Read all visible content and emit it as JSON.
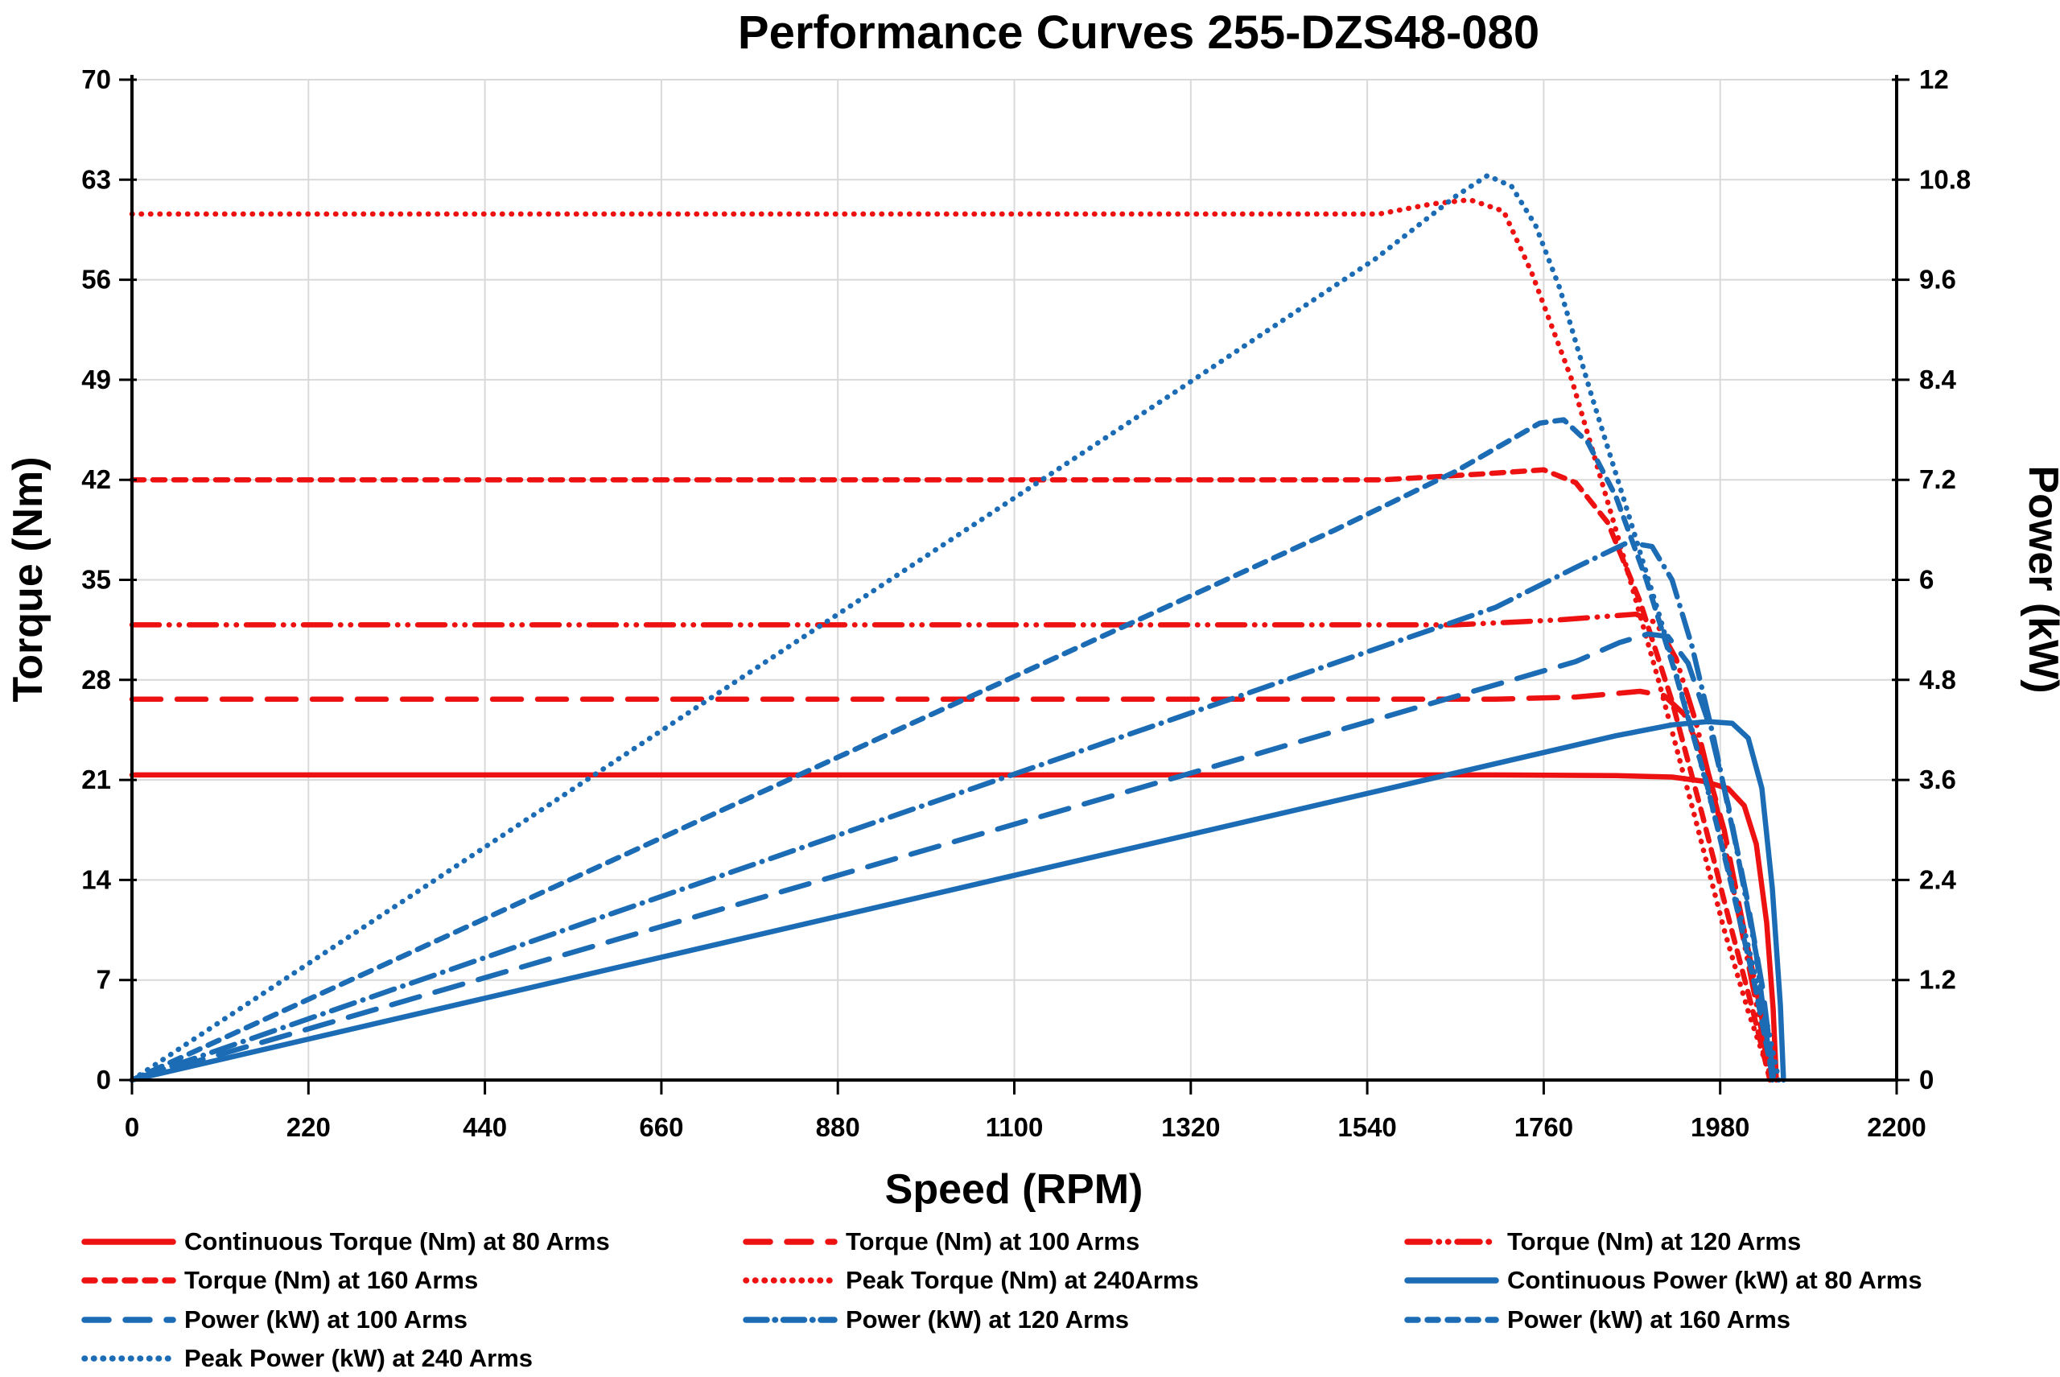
{
  "colors": {
    "red": "#ED1111",
    "blue": "#1B6CB5",
    "grid": "#D9D9D9",
    "axis": "#000000",
    "text": "#000000"
  },
  "chart_data": {
    "type": "line",
    "title": "Performance Curves 255-DZS48-080",
    "xlabel": "Speed (RPM)",
    "ylabel_left": "Torque (Nm)",
    "ylabel_right": "Power (kW)",
    "xlim": [
      0,
      2200
    ],
    "ylim_left": [
      0,
      70
    ],
    "ylim_right": [
      0,
      12
    ],
    "x_ticks": [
      0,
      220,
      440,
      660,
      880,
      1100,
      1320,
      1540,
      1760,
      1980,
      2200
    ],
    "y_ticks_left": [
      0,
      7,
      14,
      21,
      28,
      35,
      42,
      49,
      56,
      63,
      70
    ],
    "y_ticks_right": [
      0,
      1.2,
      2.4,
      3.6,
      4.8,
      6,
      7.2,
      8.4,
      9.6,
      10.8,
      12
    ],
    "grid": true,
    "legend_position": "bottom",
    "series": [
      {
        "id": "t80",
        "name": "Continuous Torque (Nm) at 80 Arms",
        "axis": "left",
        "color": "red",
        "dash": "solid",
        "points": [
          [
            0,
            21.35
          ],
          [
            1700,
            21.35
          ],
          [
            1850,
            21.3
          ],
          [
            1920,
            21.2
          ],
          [
            1960,
            20.9
          ],
          [
            1990,
            20.4
          ],
          [
            2010,
            19.2
          ],
          [
            2025,
            16.5
          ],
          [
            2038,
            11
          ],
          [
            2046,
            5
          ],
          [
            2050,
            0
          ]
        ]
      },
      {
        "id": "t100",
        "name": "Torque (Nm) at 100 Arms",
        "axis": "left",
        "color": "red",
        "dash": "long-dash",
        "points": [
          [
            0,
            26.65
          ],
          [
            1700,
            26.65
          ],
          [
            1800,
            26.8
          ],
          [
            1880,
            27.2
          ],
          [
            1910,
            26.9
          ],
          [
            1935,
            25.6
          ],
          [
            1960,
            22.5
          ],
          [
            1985,
            17.5
          ],
          [
            2008,
            11
          ],
          [
            2030,
            5
          ],
          [
            2044,
            0
          ]
        ]
      },
      {
        "id": "t120",
        "name": "Torque (Nm) at 120 Arms",
        "axis": "left",
        "color": "red",
        "dash": "dash-dot-dot",
        "points": [
          [
            0,
            31.85
          ],
          [
            1650,
            31.85
          ],
          [
            1780,
            32.2
          ],
          [
            1875,
            32.6
          ],
          [
            1900,
            32
          ],
          [
            1925,
            29.5
          ],
          [
            1950,
            25
          ],
          [
            1978,
            18.5
          ],
          [
            2005,
            11
          ],
          [
            2028,
            4.5
          ],
          [
            2043,
            0
          ]
        ]
      },
      {
        "id": "t160",
        "name": "Torque (Nm) at 160 Arms",
        "axis": "left",
        "color": "red",
        "dash": "short-dash",
        "points": [
          [
            0,
            42
          ],
          [
            1560,
            42
          ],
          [
            1680,
            42.4
          ],
          [
            1760,
            42.7
          ],
          [
            1800,
            41.8
          ],
          [
            1840,
            39
          ],
          [
            1880,
            33.5
          ],
          [
            1920,
            26.5
          ],
          [
            1958,
            18.5
          ],
          [
            1992,
            11
          ],
          [
            2020,
            5
          ],
          [
            2042,
            0
          ]
        ]
      },
      {
        "id": "t240",
        "name": "Peak Torque (Nm) at 240Arms",
        "axis": "left",
        "color": "red",
        "dash": "dot",
        "points": [
          [
            0,
            60.6
          ],
          [
            1555,
            60.6
          ],
          [
            1620,
            61.3
          ],
          [
            1668,
            61.6
          ],
          [
            1710,
            60.8
          ],
          [
            1745,
            56.5
          ],
          [
            1795,
            49
          ],
          [
            1850,
            38.5
          ],
          [
            1903,
            28
          ],
          [
            1948,
            18.5
          ],
          [
            1985,
            10.5
          ],
          [
            2015,
            4.8
          ],
          [
            2044,
            0
          ]
        ]
      },
      {
        "id": "p80",
        "name": "Continuous Power (kW) at 80 Arms",
        "axis": "right",
        "color": "blue",
        "dash": "solid",
        "points": [
          [
            0,
            0
          ],
          [
            950,
            2.12
          ],
          [
            1850,
            4.13
          ],
          [
            1920,
            4.26
          ],
          [
            1965,
            4.3
          ],
          [
            1995,
            4.28
          ],
          [
            2015,
            4.1
          ],
          [
            2032,
            3.5
          ],
          [
            2045,
            2.3
          ],
          [
            2055,
            0.9
          ],
          [
            2059,
            0
          ]
        ]
      },
      {
        "id": "p100",
        "name": "Power (kW) at 100 Arms",
        "axis": "right",
        "color": "blue",
        "dash": "long-dash",
        "points": [
          [
            0,
            0
          ],
          [
            950,
            2.65
          ],
          [
            1800,
            5.02
          ],
          [
            1855,
            5.25
          ],
          [
            1890,
            5.35
          ],
          [
            1915,
            5.32
          ],
          [
            1940,
            5.0
          ],
          [
            1965,
            4.3
          ],
          [
            1990,
            3.3
          ],
          [
            2013,
            2.2
          ],
          [
            2033,
            1.1
          ],
          [
            2047,
            0
          ]
        ]
      },
      {
        "id": "p120",
        "name": "Power (kW) at 120 Arms",
        "axis": "right",
        "color": "blue",
        "dash": "dash-dot",
        "points": [
          [
            0,
            0
          ],
          [
            950,
            3.17
          ],
          [
            1700,
            5.67
          ],
          [
            1800,
            6.15
          ],
          [
            1865,
            6.45
          ],
          [
            1895,
            6.4
          ],
          [
            1920,
            6.0
          ],
          [
            1945,
            5.2
          ],
          [
            1972,
            4.1
          ],
          [
            2000,
            2.8
          ],
          [
            2025,
            1.5
          ],
          [
            2045,
            0
          ]
        ]
      },
      {
        "id": "p160",
        "name": "Power (kW) at 160 Arms",
        "axis": "right",
        "color": "blue",
        "dash": "short-dash",
        "points": [
          [
            0,
            0
          ],
          [
            950,
            4.18
          ],
          [
            1500,
            6.6
          ],
          [
            1650,
            7.3
          ],
          [
            1755,
            7.88
          ],
          [
            1785,
            7.92
          ],
          [
            1815,
            7.65
          ],
          [
            1850,
            7.0
          ],
          [
            1888,
            6.0
          ],
          [
            1925,
            4.85
          ],
          [
            1962,
            3.6
          ],
          [
            1995,
            2.3
          ],
          [
            2024,
            1.1
          ],
          [
            2046,
            0
          ]
        ]
      },
      {
        "id": "p240",
        "name": "Peak Power (kW) at 240 Arms",
        "axis": "right",
        "color": "blue",
        "dash": "dot",
        "points": [
          [
            0,
            0
          ],
          [
            800,
            5.08
          ],
          [
            1300,
            8.25
          ],
          [
            1550,
            9.85
          ],
          [
            1650,
            10.6
          ],
          [
            1690,
            10.85
          ],
          [
            1720,
            10.72
          ],
          [
            1750,
            10.25
          ],
          [
            1780,
            9.5
          ],
          [
            1820,
            8.2
          ],
          [
            1862,
            6.9
          ],
          [
            1905,
            5.55
          ],
          [
            1945,
            4.2
          ],
          [
            1980,
            2.9
          ],
          [
            2010,
            1.8
          ],
          [
            2038,
            0.7
          ],
          [
            2053,
            0
          ]
        ]
      }
    ],
    "legend_items": [
      {
        "label": "Continuous Torque (Nm) at 80 Arms",
        "series": "t80",
        "row": 0,
        "col": 0
      },
      {
        "label": "Torque (Nm) at 100 Arms",
        "series": "t100",
        "row": 0,
        "col": 1
      },
      {
        "label": "Torque (Nm) at 120 Arms",
        "series": "t120",
        "row": 0,
        "col": 2
      },
      {
        "label": "Torque (Nm) at 160 Arms",
        "series": "t160",
        "row": 1,
        "col": 0
      },
      {
        "label": "Peak Torque (Nm) at 240Arms",
        "series": "t240",
        "row": 1,
        "col": 1
      },
      {
        "label": "Continuous Power (kW) at 80 Arms",
        "series": "p80",
        "row": 1,
        "col": 2
      },
      {
        "label": "Power (kW) at 100 Arms",
        "series": "p100",
        "row": 2,
        "col": 0
      },
      {
        "label": "Power (kW) at 120 Arms",
        "series": "p120",
        "row": 2,
        "col": 1
      },
      {
        "label": "Power (kW) at 160 Arms",
        "series": "p160",
        "row": 2,
        "col": 2
      },
      {
        "label": "Peak Power (kW) at 240 Arms",
        "series": "p240",
        "row": 3,
        "col": 0
      }
    ]
  }
}
